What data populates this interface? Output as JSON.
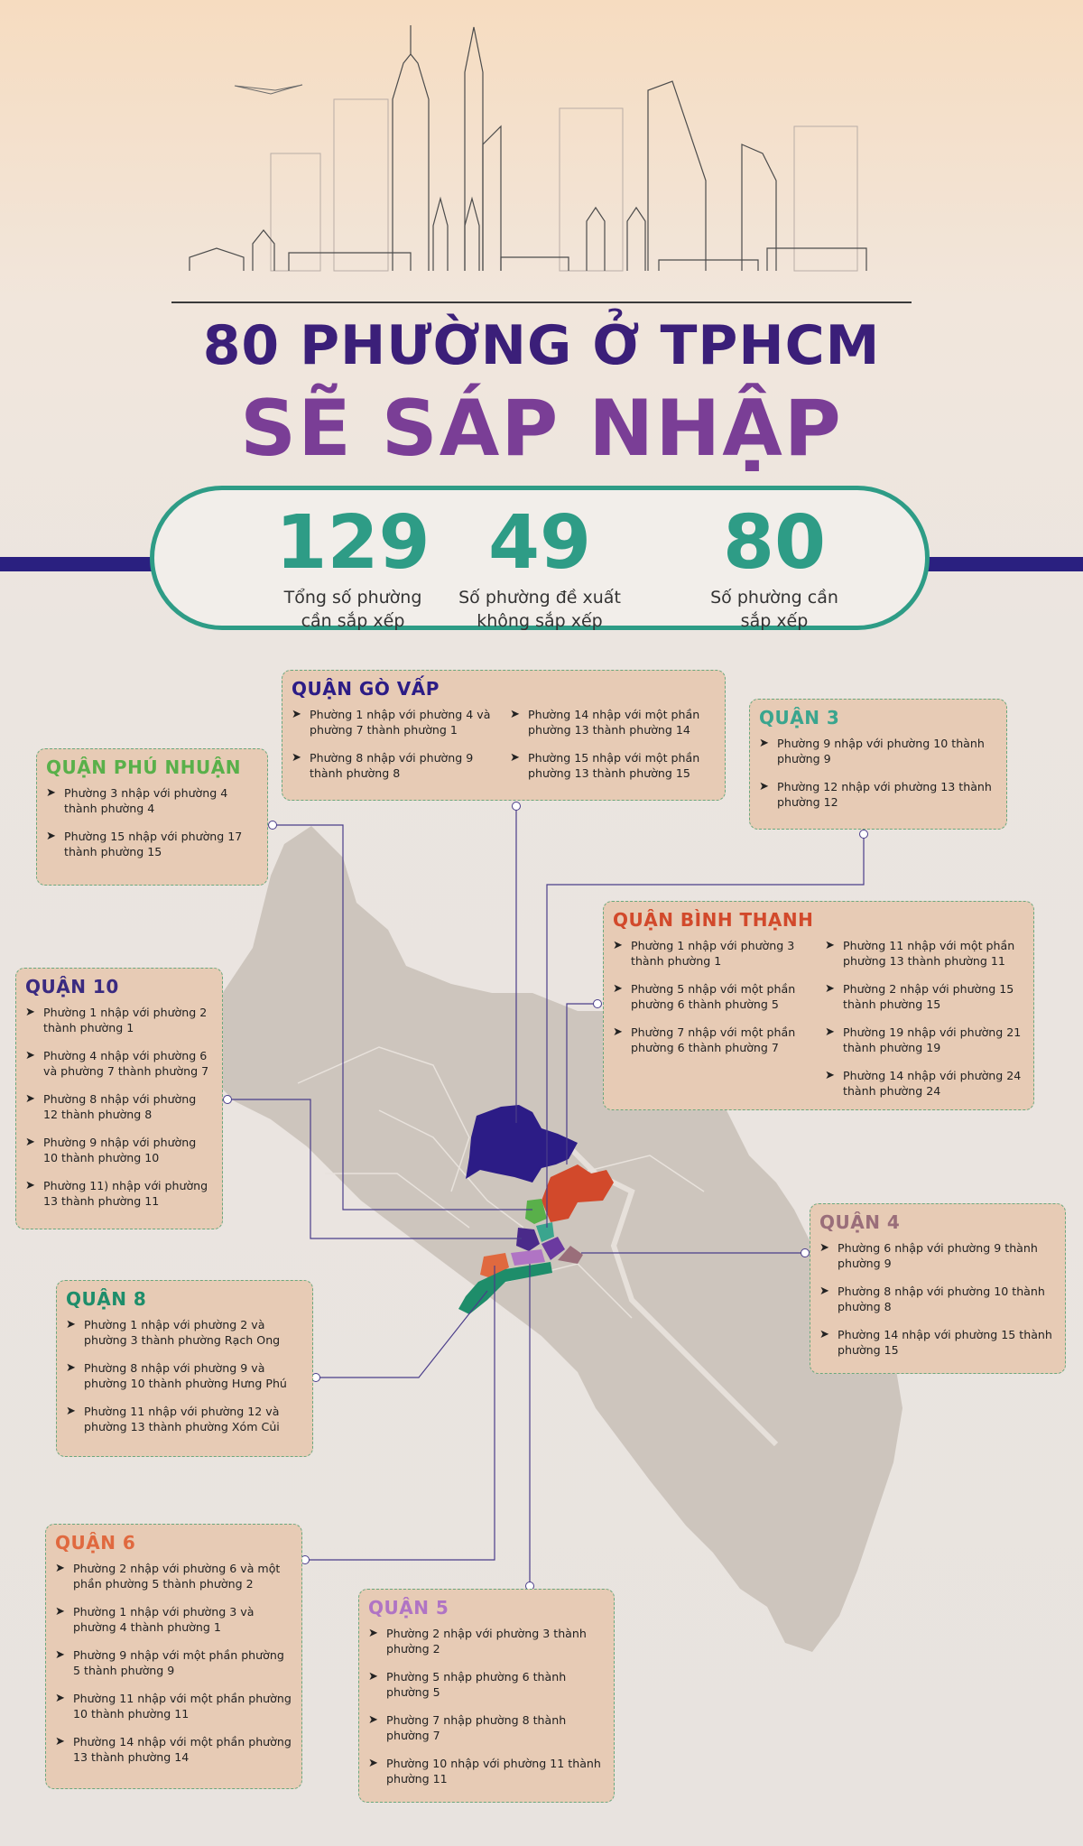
{
  "title_line1": "80 PHƯỜNG Ở TPHCM",
  "title_line2": "SẼ SÁP NHẬP",
  "stats": [
    {
      "number": "129",
      "label_line1": "Tổng số phường",
      "label_line2": "cần sắp xếp"
    },
    {
      "number": "49",
      "label_line1": "Số phường đề xuất",
      "label_line2": "không sắp xếp"
    },
    {
      "number": "80",
      "label_line1": "Số phường cần",
      "label_line2": "sắp xếp"
    }
  ],
  "colors": {
    "go_vap": "#2c1c86",
    "phu_nhuan": "#59b04a",
    "quan3": "#3aa58e",
    "binh_thanh": "#d2492b",
    "quan10": "#3a2a80",
    "quan4": "#9a6e7a",
    "quan8": "#1e8d6a",
    "quan6": "#e0693f",
    "quan5": "#b074c4"
  },
  "districts": {
    "go_vap": {
      "name": "QUẬN GÒ VẤP",
      "col1": [
        "Phường 1 nhập với phường 4 và phường 7 thành phường 1",
        "Phường 8 nhập với phường 9 thành phường 8"
      ],
      "col2": [
        "Phường 14 nhập với một phần phường 13 thành phường 14",
        "Phường 15 nhập với một phần phường 13 thành phường 15"
      ]
    },
    "quan3": {
      "name": "QUẬN 3",
      "items": [
        "Phường 9 nhập với phường 10 thành phường 9",
        "Phường 12 nhập với phường 13 thành phường 12"
      ]
    },
    "phu_nhuan": {
      "name": "QUẬN PHÚ NHUẬN",
      "items": [
        "Phường 3 nhập với phường 4 thành phường 4",
        "Phường 15 nhập với phường 17 thành phường 15"
      ]
    },
    "binh_thanh": {
      "name": "QUẬN BÌNH THẠNH",
      "col1": [
        "Phường 1 nhập với phường 3 thành phường 1",
        "Phường 5 nhập với một phần phường 6 thành phường 5",
        "Phường 7 nhập với một phần phường 6 thành phường 7"
      ],
      "col2": [
        "Phường 11 nhập với một phần phường 13  thành phường 11",
        "Phường 2 nhập với phường 15 thành phường 15",
        "Phường 19 nhập với phường 21 thành phường 19",
        "Phường 14 nhập với phường 24 thành phường 24"
      ]
    },
    "quan10": {
      "name": "QUẬN 10",
      "items": [
        "Phường 1 nhập với phường 2 thành phường 1",
        "Phường 4 nhập với phường 6 và phường 7 thành phường 7",
        "Phường 8 nhập với phường 12 thành phường 8",
        "Phường 9 nhập với phường 10 thành phường 10",
        "Phường 11) nhập với phường 13 thành phường 11"
      ]
    },
    "quan4": {
      "name": "QUẬN 4",
      "items": [
        "Phường 6 nhập với phường 9 thành phường 9",
        "Phường 8 nhập với phường 10 thành phường 8",
        "Phường 14 nhập với phường 15 thành phường 15"
      ]
    },
    "quan8": {
      "name": "QUẬN 8",
      "items": [
        "Phường 1 nhập với phường 2 và phường 3 thành phường Rạch Ong",
        "Phường 8 nhập với phường 9 và phường 10 thành phường Hưng Phú",
        "Phường 11 nhập với phường 12 và phường 13 thành phường Xóm Củi"
      ]
    },
    "quan6": {
      "name": "QUẬN 6",
      "items": [
        "Phường 2 nhập với phường 6 và một phần phường 5 thành phường 2",
        "Phường 1 nhập với phường 3 và phường 4 thành phường 1",
        "Phường 9 nhập với một phần phường 5 thành phường 9",
        "Phường 11 nhập với một phần phường 10 thành phường 11",
        "Phường 14 nhập với một phần phường 13 thành phường 14"
      ]
    },
    "quan5": {
      "name": "QUẬN 5",
      "items": [
        "Phường 2 nhập với phường 3 thành phường 2",
        "Phường 5 nhập phường 6 thành phường 5",
        "Phường 7 nhập phường 8 thành phường 7",
        "Phường 10 nhập với phường 11 thành phường 11"
      ]
    }
  }
}
